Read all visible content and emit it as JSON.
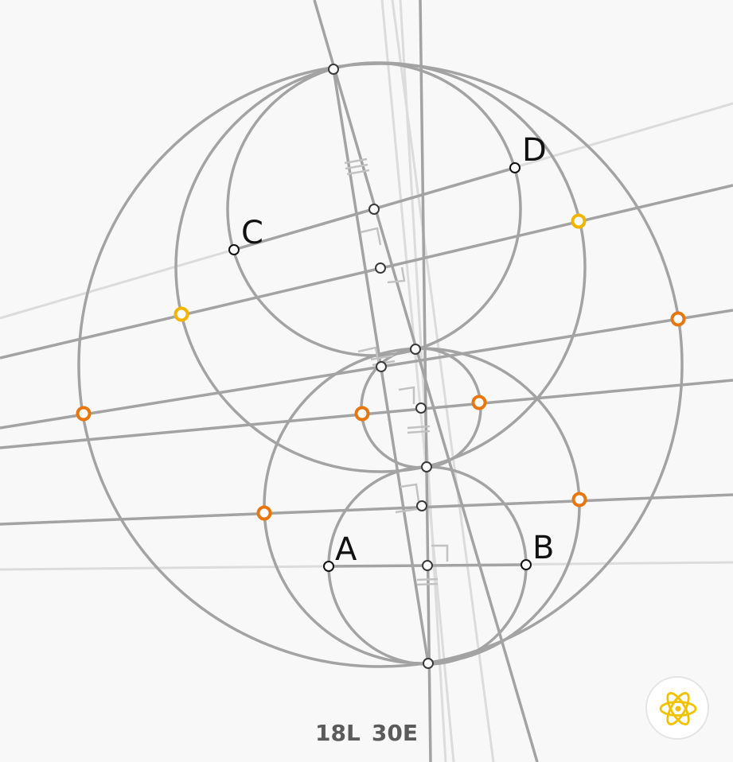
{
  "points": {
    "A": "A",
    "B": "B",
    "C": "C",
    "D": "D"
  },
  "status": {
    "lines": "18L",
    "euclid": "30E"
  },
  "hint": {
    "icon": "atom-icon"
  },
  "colors": {
    "background": "#f8f8f8",
    "construction": "#a3a3a3",
    "faint": "#dcdcdc",
    "goal_orange": "#e8760e",
    "goal_yellow": "#f2b400",
    "hint_icon": "#f2c200"
  }
}
